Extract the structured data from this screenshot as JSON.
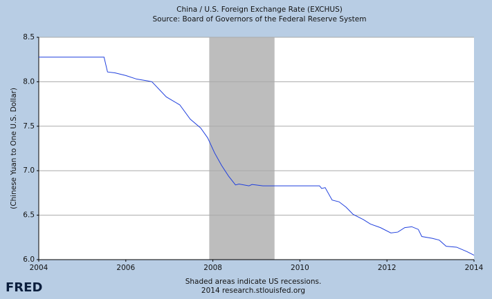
{
  "chart_data": {
    "type": "line",
    "title": "China / U.S. Foreign Exchange Rate (EXCHUS)",
    "subtitle": "Source: Board of Governors of the Federal Reserve System",
    "y_label": "(Chinese Yuan to One U.S. Dollar)",
    "footnote": "Shaded areas indicate US recessions.",
    "credit": "2014 research.stlouisfed.org",
    "logo": "FRED",
    "xlim": [
      2004,
      2014
    ],
    "xticks": [
      2004,
      2006,
      2008,
      2010,
      2012,
      2014
    ],
    "ylim": [
      6,
      8.5
    ],
    "yticks": [
      {
        "value": 6,
        "label": "6.0"
      },
      6.5,
      {
        "value": 7,
        "label": "7.0"
      },
      7.5,
      {
        "value": 8,
        "label": "8.0"
      },
      8.5
    ],
    "grid": true,
    "recessions": [
      [
        2007.917,
        2009.417
      ]
    ],
    "recession_color": "#bdbdbd",
    "x": [
      2004.0,
      2005.5,
      2005.58,
      2005.75,
      2006.0,
      2006.25,
      2006.5,
      2006.6,
      2006.93,
      2007.24,
      2007.48,
      2007.72,
      2007.88,
      2008.04,
      2008.2,
      2008.36,
      2008.52,
      2008.6,
      2008.83,
      2008.9,
      2009.15,
      2010.45,
      2010.5,
      2010.58,
      2010.74,
      2010.9,
      2011.06,
      2011.22,
      2011.46,
      2011.62,
      2011.85,
      2012.09,
      2012.25,
      2012.41,
      2012.57,
      2012.72,
      2012.8,
      2013.04,
      2013.2,
      2013.36,
      2013.6,
      2013.84,
      2014.0
    ],
    "series": [
      {
        "name": "EXCHUS",
        "color": "#1f3fdd",
        "values": [
          8.277,
          8.277,
          8.11,
          8.1,
          8.07,
          8.03,
          8.01,
          8.0,
          7.83,
          7.74,
          7.58,
          7.48,
          7.37,
          7.2,
          7.06,
          6.94,
          6.84,
          6.85,
          6.83,
          6.845,
          6.83,
          6.83,
          6.8,
          6.81,
          6.67,
          6.65,
          6.59,
          6.51,
          6.45,
          6.4,
          6.36,
          6.3,
          6.31,
          6.36,
          6.37,
          6.34,
          6.26,
          6.24,
          6.22,
          6.15,
          6.14,
          6.09,
          6.05
        ]
      }
    ]
  }
}
